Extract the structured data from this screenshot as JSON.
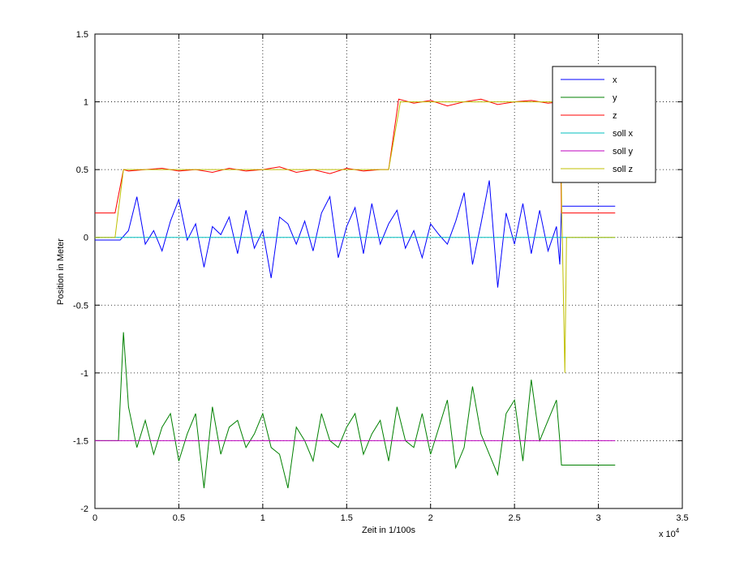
{
  "chart_data": {
    "type": "line",
    "xlabel": "Zeit in 1/100s",
    "ylabel": "Position in Meter",
    "x_multiplier": "x 10",
    "x_multiplier_exponent": "4",
    "xlim": [
      0,
      3.5
    ],
    "ylim": [
      -2,
      1.5
    ],
    "xticks": [
      0,
      0.5,
      1,
      1.5,
      2,
      2.5,
      3,
      3.5
    ],
    "yticks": [
      -2,
      -1.5,
      -1,
      -0.5,
      0,
      0.5,
      1,
      1.5
    ],
    "grid": true,
    "legend": "upper right",
    "series": [
      {
        "name": "x",
        "color": "#0000ff",
        "x": [
          0,
          0.15,
          0.2,
          0.25,
          0.3,
          0.35,
          0.4,
          0.45,
          0.5,
          0.55,
          0.6,
          0.65,
          0.7,
          0.75,
          0.8,
          0.85,
          0.9,
          0.95,
          1,
          1.05,
          1.1,
          1.15,
          1.2,
          1.25,
          1.3,
          1.35,
          1.4,
          1.45,
          1.5,
          1.55,
          1.6,
          1.65,
          1.7,
          1.75,
          1.8,
          1.85,
          1.9,
          1.95,
          2,
          2.05,
          2.1,
          2.15,
          2.2,
          2.25,
          2.3,
          2.35,
          2.4,
          2.45,
          2.5,
          2.55,
          2.6,
          2.65,
          2.7,
          2.75,
          2.77,
          2.78,
          3.1
        ],
        "y": [
          -0.02,
          -0.02,
          0.05,
          0.3,
          -0.05,
          0.05,
          -0.1,
          0.12,
          0.28,
          -0.02,
          0.1,
          -0.22,
          0.08,
          0.02,
          0.15,
          -0.12,
          0.2,
          -0.08,
          0.05,
          -0.3,
          0.15,
          0.1,
          -0.05,
          0.12,
          -0.1,
          0.18,
          0.3,
          -0.15,
          0.08,
          0.22,
          -0.12,
          0.25,
          -0.05,
          0.1,
          0.2,
          -0.08,
          0.05,
          -0.15,
          0.1,
          0.02,
          -0.05,
          0.12,
          0.33,
          -0.2,
          0.1,
          0.42,
          -0.37,
          0.18,
          -0.05,
          0.25,
          -0.12,
          0.2,
          -0.1,
          0.08,
          -0.2,
          0.23,
          0.23
        ]
      },
      {
        "name": "y",
        "color": "#008000",
        "x": [
          0,
          0.14,
          0.17,
          0.2,
          0.25,
          0.3,
          0.35,
          0.4,
          0.45,
          0.5,
          0.55,
          0.6,
          0.65,
          0.7,
          0.75,
          0.8,
          0.85,
          0.9,
          0.95,
          1,
          1.05,
          1.1,
          1.15,
          1.2,
          1.25,
          1.3,
          1.35,
          1.4,
          1.45,
          1.5,
          1.55,
          1.6,
          1.65,
          1.7,
          1.75,
          1.8,
          1.85,
          1.9,
          1.95,
          2,
          2.05,
          2.1,
          2.15,
          2.2,
          2.25,
          2.3,
          2.35,
          2.4,
          2.45,
          2.5,
          2.55,
          2.6,
          2.65,
          2.7,
          2.75,
          2.77,
          2.78,
          3.1
        ],
        "y": [
          -1.5,
          -1.5,
          -0.7,
          -1.25,
          -1.55,
          -1.35,
          -1.6,
          -1.4,
          -1.3,
          -1.65,
          -1.45,
          -1.3,
          -1.85,
          -1.25,
          -1.6,
          -1.4,
          -1.35,
          -1.55,
          -1.45,
          -1.3,
          -1.55,
          -1.6,
          -1.85,
          -1.4,
          -1.5,
          -1.65,
          -1.3,
          -1.5,
          -1.55,
          -1.4,
          -1.3,
          -1.6,
          -1.45,
          -1.35,
          -1.65,
          -1.25,
          -1.5,
          -1.55,
          -1.3,
          -1.6,
          -1.4,
          -1.2,
          -1.7,
          -1.55,
          -1.1,
          -1.45,
          -1.6,
          -1.75,
          -1.3,
          -1.2,
          -1.65,
          -1.05,
          -1.5,
          -1.35,
          -1.2,
          -1.5,
          -1.68,
          -1.68
        ]
      },
      {
        "name": "z",
        "color": "#ff0000",
        "x": [
          0,
          0.12,
          0.17,
          0.2,
          0.3,
          0.4,
          0.5,
          0.6,
          0.7,
          0.8,
          0.9,
          1,
          1.1,
          1.2,
          1.3,
          1.4,
          1.5,
          1.6,
          1.7,
          1.75,
          1.81,
          1.9,
          2,
          2.1,
          2.2,
          2.3,
          2.4,
          2.5,
          2.6,
          2.7,
          2.77,
          2.78,
          3.1
        ],
        "y": [
          0.18,
          0.18,
          0.5,
          0.49,
          0.5,
          0.51,
          0.49,
          0.5,
          0.48,
          0.51,
          0.49,
          0.5,
          0.52,
          0.48,
          0.5,
          0.47,
          0.51,
          0.49,
          0.5,
          0.5,
          1.02,
          0.99,
          1.01,
          0.97,
          1,
          1.02,
          0.98,
          1,
          1.01,
          0.99,
          1,
          0.18,
          0.18
        ]
      },
      {
        "name": "soll x",
        "color": "#00bfbf",
        "x": [
          0,
          3.1
        ],
        "y": [
          0,
          0
        ]
      },
      {
        "name": "soll y",
        "color": "#bf00bf",
        "x": [
          0,
          3.1
        ],
        "y": [
          -1.5,
          -1.5
        ]
      },
      {
        "name": "soll z",
        "color": "#bfbf00",
        "x": [
          0,
          0.12,
          0.17,
          1.75,
          1.82,
          2.77,
          2.8,
          2.81,
          3.1
        ],
        "y": [
          0,
          0,
          0.5,
          0.5,
          1,
          1,
          -1,
          0,
          0
        ]
      }
    ]
  }
}
